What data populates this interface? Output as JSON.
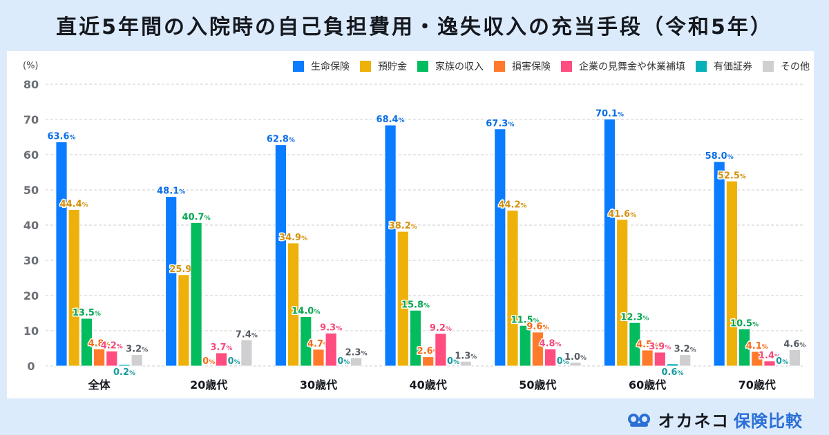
{
  "title": "直近5年間の入院時の自己負担費用・逸失収入の充当手段（令和5年）",
  "unit_label": "(%)",
  "logo": {
    "brand": "オカネコ",
    "sub": "保険比較",
    "icon": "owl-eyes-icon"
  },
  "chart_data": {
    "type": "bar",
    "title": "直近5年間の入院時の自己負担費用・逸失収入の充当手段（令和5年）",
    "xlabel": "",
    "ylabel": "(%)",
    "ylim": [
      0,
      80
    ],
    "yticks": [
      0,
      10,
      20,
      30,
      40,
      50,
      60,
      70,
      80
    ],
    "grid": true,
    "legend_position": "top-right",
    "categories": [
      "全体",
      "20歳代",
      "30歳代",
      "40歳代",
      "50歳代",
      "60歳代",
      "70歳代"
    ],
    "series": [
      {
        "name": "生命保険",
        "color": "#0a7cff",
        "label_color": "#0a6ee6",
        "values": [
          63.6,
          48.1,
          62.8,
          68.4,
          67.3,
          70.1,
          58.0
        ]
      },
      {
        "name": "預貯金",
        "color": "#edb10a",
        "label_color": "#d4900a",
        "values": [
          44.4,
          25.9,
          34.9,
          38.2,
          44.2,
          41.6,
          52.5
        ]
      },
      {
        "name": "家族の収入",
        "color": "#04bb5e",
        "label_color": "#06a552",
        "values": [
          13.5,
          40.7,
          14.0,
          15.8,
          11.5,
          12.3,
          10.5
        ]
      },
      {
        "name": "損害保険",
        "color": "#ff7a2b",
        "label_color": "#f86a14",
        "values": [
          4.8,
          0,
          4.7,
          2.6,
          9.6,
          4.5,
          4.1
        ]
      },
      {
        "name": "企業の見舞金や休業補填",
        "color": "#ff4d80",
        "label_color": "#f54a7a",
        "values": [
          4.2,
          3.7,
          9.3,
          9.2,
          4.8,
          3.9,
          1.4
        ]
      },
      {
        "name": "有価証券",
        "color": "#08b1b8",
        "label_color": "#16999c",
        "values": [
          0.2,
          0,
          0,
          0,
          0,
          0.6,
          0
        ]
      },
      {
        "name": "その他",
        "color": "#cfcfd2",
        "label_color": "#555a63",
        "values": [
          3.2,
          7.4,
          2.3,
          1.3,
          1.0,
          3.2,
          4.6
        ]
      }
    ],
    "value_labels": [
      [
        "63.6",
        "44.4",
        "13.5",
        "4.8",
        "4.2",
        "0.2",
        "3.2"
      ],
      [
        "48.1",
        "25.9",
        "40.7",
        "0",
        "3.7",
        "0",
        "7.4"
      ],
      [
        "62.8",
        "34.9",
        "14.0",
        "4.7",
        "9.3",
        "0",
        "2.3"
      ],
      [
        "68.4",
        "38.2",
        "15.8",
        "2.6",
        "9.2",
        "0",
        "1.3"
      ],
      [
        "67.3",
        "44.2",
        "11.5",
        "9.6",
        "4.8",
        "0",
        "1.0"
      ],
      [
        "70.1",
        "41.6",
        "12.3",
        "4.5",
        "3.9",
        "0.6",
        "3.2"
      ],
      [
        "58.0",
        "52.5",
        "10.5",
        "4.1",
        "1.4",
        "0",
        "4.6"
      ]
    ],
    "value_suffix": "%"
  }
}
